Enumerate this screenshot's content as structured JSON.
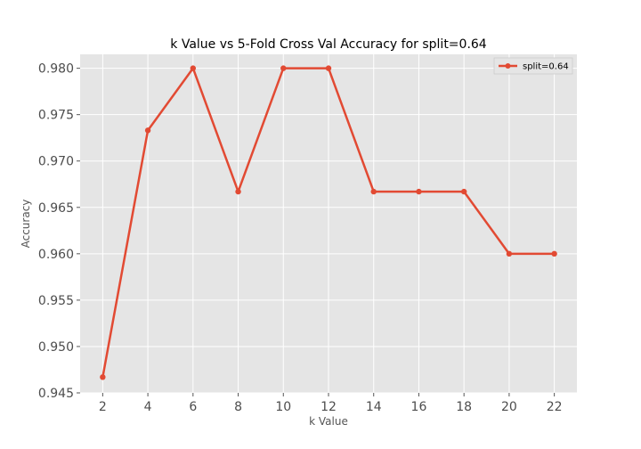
{
  "chart_data": {
    "type": "line",
    "title": "k Value vs 5-Fold Cross Val Accuracy for split=0.64",
    "xlabel": "k Value",
    "ylabel": "Accuracy",
    "x": [
      2,
      4,
      6,
      8,
      10,
      12,
      14,
      16,
      18,
      20,
      22
    ],
    "series": [
      {
        "name": "split=0.64",
        "values": [
          0.9467,
          0.9733,
          0.98,
          0.9667,
          0.98,
          0.98,
          0.9667,
          0.9667,
          0.9667,
          0.96,
          0.96
        ],
        "color": "#e24a33"
      }
    ],
    "xticks": [
      "2",
      "4",
      "6",
      "8",
      "10",
      "12",
      "14",
      "16",
      "18",
      "20",
      "22"
    ],
    "yticks": [
      "0.945",
      "0.950",
      "0.955",
      "0.960",
      "0.965",
      "0.970",
      "0.975",
      "0.980"
    ],
    "xlim": [
      1,
      23
    ],
    "ylim": [
      0.945,
      0.9815
    ],
    "grid": true,
    "legend": "top-right",
    "background": "#e5e5e5",
    "grid_color": "#ffffff"
  }
}
